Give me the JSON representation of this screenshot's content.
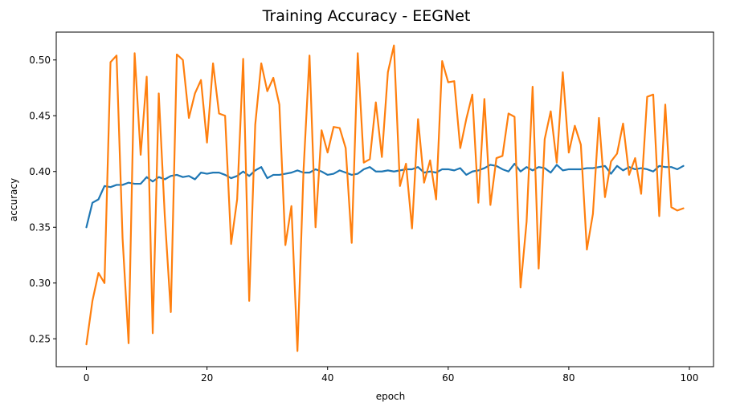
{
  "chart_data": {
    "type": "line",
    "title": "Training Accuracy - EEGNet",
    "xlabel": "epoch",
    "ylabel": "accuracy",
    "xlim": [
      -5,
      104
    ],
    "ylim": [
      0.225,
      0.525
    ],
    "xticks": [
      0,
      20,
      40,
      60,
      80,
      100
    ],
    "yticks": [
      0.25,
      0.3,
      0.35,
      0.4,
      0.45,
      0.5
    ],
    "ytick_labels": [
      "0.25",
      "0.30",
      "0.35",
      "0.40",
      "0.45",
      "0.50"
    ],
    "grid": false,
    "legend": "none",
    "series": [
      {
        "color": "#1f77b4",
        "values": [
          0.35,
          0.372,
          0.375,
          0.387,
          0.386,
          0.388,
          0.388,
          0.39,
          0.389,
          0.389,
          0.395,
          0.391,
          0.395,
          0.393,
          0.396,
          0.397,
          0.395,
          0.396,
          0.393,
          0.399,
          0.398,
          0.399,
          0.399,
          0.397,
          0.394,
          0.396,
          0.4,
          0.396,
          0.401,
          0.404,
          0.394,
          0.397,
          0.397,
          0.398,
          0.399,
          0.401,
          0.399,
          0.399,
          0.402,
          0.4,
          0.397,
          0.398,
          0.401,
          0.399,
          0.397,
          0.398,
          0.402,
          0.404,
          0.4,
          0.4,
          0.401,
          0.4,
          0.401,
          0.402,
          0.402,
          0.404,
          0.399,
          0.4,
          0.399,
          0.402,
          0.402,
          0.401,
          0.403,
          0.397,
          0.4,
          0.401,
          0.403,
          0.406,
          0.405,
          0.402,
          0.4,
          0.407,
          0.4,
          0.404,
          0.401,
          0.404,
          0.403,
          0.399,
          0.406,
          0.401,
          0.402,
          0.402,
          0.402,
          0.403,
          0.403,
          0.404,
          0.405,
          0.398,
          0.405,
          0.401,
          0.404,
          0.402,
          0.403,
          0.402,
          0.4,
          0.405,
          0.404,
          0.404,
          0.402,
          0.405
        ]
      },
      {
        "color": "#ff7f0e",
        "values": [
          0.245,
          0.284,
          0.309,
          0.3,
          0.498,
          0.504,
          0.34,
          0.246,
          0.506,
          0.415,
          0.485,
          0.255,
          0.47,
          0.36,
          0.274,
          0.505,
          0.5,
          0.448,
          0.47,
          0.482,
          0.426,
          0.497,
          0.452,
          0.45,
          0.335,
          0.375,
          0.501,
          0.284,
          0.442,
          0.497,
          0.472,
          0.484,
          0.46,
          0.334,
          0.369,
          0.239,
          0.4,
          0.504,
          0.35,
          0.437,
          0.417,
          0.44,
          0.439,
          0.421,
          0.336,
          0.506,
          0.408,
          0.411,
          0.462,
          0.413,
          0.489,
          0.513,
          0.387,
          0.407,
          0.349,
          0.447,
          0.39,
          0.41,
          0.375,
          0.499,
          0.48,
          0.481,
          0.421,
          0.447,
          0.469,
          0.372,
          0.465,
          0.37,
          0.412,
          0.414,
          0.452,
          0.449,
          0.296,
          0.355,
          0.476,
          0.313,
          0.429,
          0.454,
          0.408,
          0.489,
          0.417,
          0.441,
          0.424,
          0.33,
          0.362,
          0.448,
          0.377,
          0.409,
          0.416,
          0.443,
          0.397,
          0.412,
          0.38,
          0.467,
          0.469,
          0.36,
          0.46,
          0.368,
          0.365,
          0.367
        ]
      }
    ]
  }
}
